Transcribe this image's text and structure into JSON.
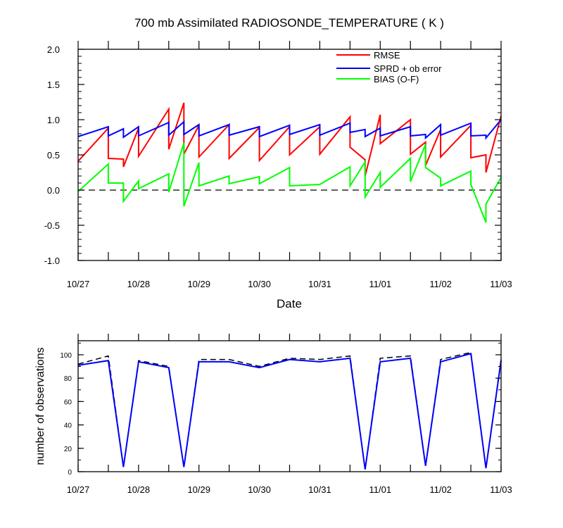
{
  "chart_data": [
    {
      "type": "line",
      "title": "700 mb Assimilated RADIOSONDE_TEMPERATURE ( K )",
      "xlabel": "Date",
      "ylabel": "",
      "x_tick_labels": [
        "10/27",
        "10/28",
        "10/29",
        "10/30",
        "10/31",
        "11/01",
        "11/02",
        "11/03"
      ],
      "y_tick_labels": [
        "-1.0",
        "-0.5",
        "0.0",
        "0.5",
        "1.0",
        "1.5",
        "2.0"
      ],
      "xlim": [
        0,
        7
      ],
      "ylim": [
        -1.0,
        2.0
      ],
      "legend_placement": "top-right",
      "reference_line": 0.0,
      "series": [
        {
          "name": "RMSE",
          "color": "#ff0000",
          "x": [
            0.0,
            0.5,
            0.5,
            0.75,
            0.75,
            1.0,
            1.0,
            1.5,
            1.5,
            1.75,
            1.75,
            2.0,
            2.0,
            2.5,
            2.5,
            3.0,
            3.0,
            3.5,
            3.5,
            4.0,
            4.0,
            4.5,
            4.5,
            4.75,
            4.75,
            5.0,
            5.0,
            5.5,
            5.5,
            5.75,
            5.75,
            6.0,
            6.0,
            6.5,
            6.5,
            6.75,
            6.75,
            7.0
          ],
          "y": [
            0.41,
            0.88,
            0.45,
            0.44,
            0.33,
            0.88,
            0.48,
            1.15,
            0.58,
            1.24,
            0.51,
            0.92,
            0.47,
            0.93,
            0.45,
            0.89,
            0.42,
            0.9,
            0.5,
            0.9,
            0.51,
            1.04,
            0.61,
            0.43,
            0.2,
            1.07,
            0.66,
            1.0,
            0.51,
            0.68,
            0.35,
            0.86,
            0.47,
            0.92,
            0.46,
            0.5,
            0.25,
            1.05
          ]
        },
        {
          "name": "SPRD + ob error",
          "color": "#0000ff",
          "x": [
            0.0,
            0.5,
            0.5,
            0.75,
            0.75,
            1.0,
            1.0,
            1.5,
            1.5,
            1.75,
            1.75,
            2.0,
            2.0,
            2.5,
            2.5,
            3.0,
            3.0,
            3.5,
            3.5,
            4.0,
            4.0,
            4.5,
            4.5,
            4.75,
            4.75,
            5.0,
            5.0,
            5.5,
            5.5,
            5.75,
            5.75,
            6.0,
            6.0,
            6.5,
            6.5,
            6.75,
            6.75,
            7.0
          ],
          "y": [
            0.76,
            0.9,
            0.77,
            0.87,
            0.75,
            0.9,
            0.77,
            0.96,
            0.78,
            0.97,
            0.79,
            0.93,
            0.77,
            0.93,
            0.78,
            0.9,
            0.76,
            0.92,
            0.79,
            0.93,
            0.78,
            0.95,
            0.82,
            0.86,
            0.76,
            0.88,
            0.77,
            0.9,
            0.77,
            0.79,
            0.74,
            0.93,
            0.78,
            0.95,
            0.77,
            0.78,
            0.74,
            1.0
          ]
        },
        {
          "name": "BIAS (O-F)",
          "color": "#00ff00",
          "x": [
            0.0,
            0.5,
            0.5,
            0.75,
            0.75,
            1.0,
            1.0,
            1.5,
            1.5,
            1.75,
            1.75,
            2.0,
            2.0,
            2.5,
            2.5,
            3.0,
            3.0,
            3.5,
            3.5,
            4.0,
            4.0,
            4.5,
            4.5,
            4.75,
            4.75,
            5.0,
            5.0,
            5.5,
            5.5,
            5.75,
            5.75,
            6.0,
            6.0,
            6.5,
            6.5,
            6.75,
            6.75,
            7.0
          ],
          "y": [
            -0.02,
            0.37,
            0.1,
            0.1,
            -0.16,
            0.13,
            0.02,
            0.23,
            -0.03,
            0.67,
            -0.23,
            0.39,
            0.06,
            0.2,
            0.09,
            0.19,
            0.09,
            0.32,
            0.06,
            0.08,
            0.08,
            0.33,
            0.06,
            0.4,
            -0.1,
            0.25,
            0.04,
            0.45,
            0.12,
            0.65,
            0.32,
            0.17,
            0.06,
            0.27,
            0.08,
            -0.46,
            -0.2,
            0.18
          ]
        }
      ]
    },
    {
      "type": "line",
      "title": "",
      "xlabel": "",
      "ylabel": "number of observations",
      "x_tick_labels": [
        "10/27",
        "10/28",
        "10/29",
        "10/30",
        "10/31",
        "11/01",
        "11/02",
        "11/03"
      ],
      "y_tick_labels": [
        "0",
        "20",
        "40",
        "60",
        "80",
        "100"
      ],
      "xlim": [
        0,
        7
      ],
      "ylim": [
        0,
        112
      ],
      "series": [
        {
          "color": "#000000",
          "style": "dashed",
          "x": [
            0.0,
            0.5,
            0.75,
            1.0,
            1.5,
            1.75,
            2.0,
            2.5,
            3.0,
            3.5,
            4.0,
            4.5,
            4.75,
            5.0,
            5.5,
            5.75,
            6.0,
            6.5,
            6.75,
            7.0
          ],
          "y": [
            92,
            99,
            4,
            95,
            90,
            4,
            96,
            96,
            90,
            97,
            96,
            99,
            2,
            97,
            99,
            5,
            96,
            102,
            3,
            96
          ]
        },
        {
          "color": "#0000ff",
          "x": [
            0.0,
            0.5,
            0.75,
            1.0,
            1.5,
            1.75,
            2.0,
            2.5,
            3.0,
            3.5,
            4.0,
            4.5,
            4.75,
            5.0,
            5.5,
            5.75,
            6.0,
            6.5,
            6.75,
            7.0
          ],
          "y": [
            91,
            95,
            4,
            94,
            89,
            4,
            94,
            94,
            89,
            96,
            94,
            97,
            2,
            94,
            97,
            5,
            94,
            101,
            3,
            95
          ]
        }
      ]
    }
  ]
}
